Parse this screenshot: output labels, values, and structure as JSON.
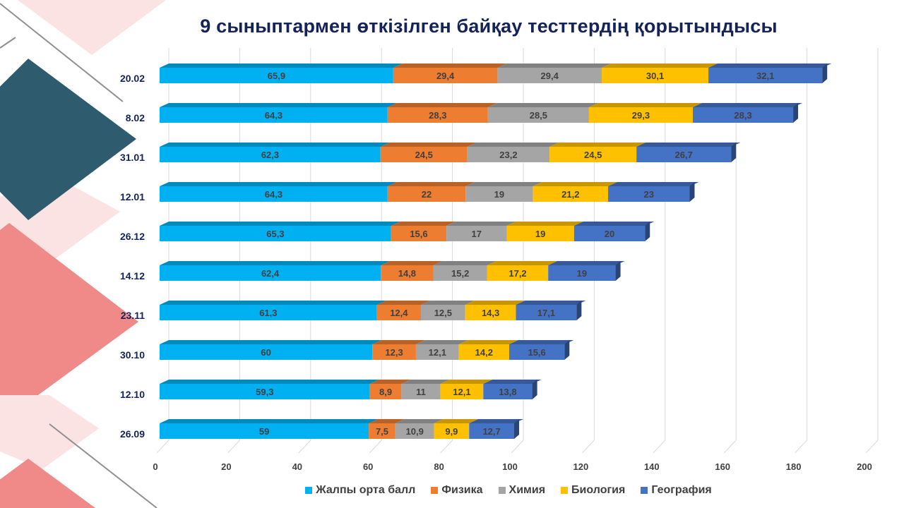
{
  "chart_data": {
    "type": "bar",
    "orientation": "horizontal",
    "stacked": true,
    "style": "3d",
    "title": "9 сыныптармен өткізілген байқау тесттердің қорытындысы",
    "xlabel": "",
    "ylabel": "",
    "xlim": [
      0,
      200
    ],
    "x_ticks": [
      "0",
      "20",
      "40",
      "60",
      "80",
      "100",
      "120",
      "140",
      "160",
      "180",
      "200"
    ],
    "grid": true,
    "legend_position": "bottom",
    "categories": [
      "20.02",
      "8.02",
      "31.01",
      "12.01",
      "26.12",
      "14.12",
      "23.11",
      "30.10",
      "12.10",
      "26.09"
    ],
    "series": [
      {
        "name": "Жалпы орта балл",
        "color": "#00b0f0",
        "values": [
          65.9,
          64.3,
          62.3,
          64.3,
          65.3,
          62.4,
          61.3,
          60,
          59.3,
          59
        ]
      },
      {
        "name": "Физика",
        "color": "#ed7d31",
        "values": [
          29.4,
          28.3,
          24.5,
          22,
          15.6,
          14.8,
          12.4,
          12.3,
          8.9,
          7.5
        ]
      },
      {
        "name": "Химия",
        "color": "#a5a5a5",
        "values": [
          29.4,
          28.5,
          23.2,
          19,
          17,
          15.2,
          12.5,
          12.1,
          11,
          10.9
        ]
      },
      {
        "name": "Биология",
        "color": "#ffc000",
        "values": [
          30.1,
          29.3,
          24.5,
          21.2,
          19,
          17.2,
          14.3,
          14.2,
          12.1,
          9.9
        ]
      },
      {
        "name": "География",
        "color": "#4472c4",
        "values": [
          32.1,
          28.3,
          26.7,
          23,
          20,
          19,
          17.1,
          15.6,
          13.8,
          12.7
        ]
      }
    ],
    "data_labels": {
      "20.02": [
        "65,9",
        "29,4",
        "29,4",
        "30,1",
        "32,1"
      ],
      "8.02": [
        "64,3",
        "28,3",
        "28,5",
        "29,3",
        "28,3"
      ],
      "31.01": [
        "62,3",
        "24,5",
        "23,2",
        "24,5",
        "26,7"
      ],
      "12.01": [
        "64,3",
        "22",
        "19",
        "21,2",
        "23"
      ],
      "26.12": [
        "65,3",
        "15,6",
        "17",
        "19",
        "20"
      ],
      "14.12": [
        "62,4",
        "14,8",
        "15,2",
        "17,2",
        "19"
      ],
      "23.11": [
        "61,3",
        "12,4",
        "12,5",
        "14,3",
        "17,1"
      ],
      "30.10": [
        "60",
        "12,3",
        "12,1",
        "14,2",
        "15,6"
      ],
      "12.10": [
        "59,3",
        "8,9",
        "11",
        "12,1",
        "13,8"
      ],
      "26.09": [
        "59",
        "7,5",
        "10,9",
        "9,9",
        "12,7"
      ]
    }
  },
  "colors": {
    "title": "#14235a",
    "category_label": "#14235a",
    "data_label": "#404040",
    "decor_teal": "#2e5b6e",
    "decor_coral": "#f08a88",
    "decor_pink": "#fbe3e3"
  }
}
